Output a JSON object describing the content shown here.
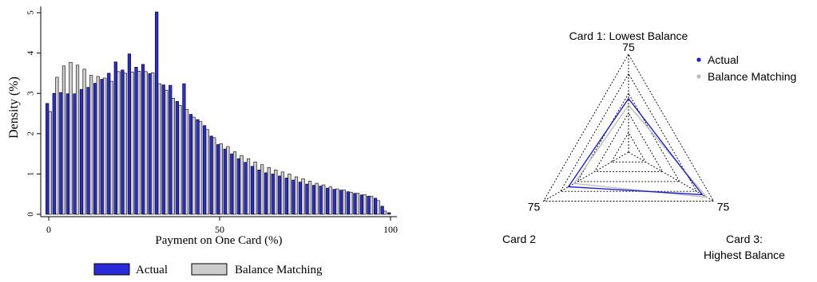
{
  "chart_data": [
    {
      "type": "bar",
      "xlabel": "Payment on One Card (%)",
      "ylabel": "Density (%)",
      "xlim": [
        0,
        100
      ],
      "ylim": [
        0,
        5
      ],
      "xticks": [
        0,
        50,
        100
      ],
      "yticks": [
        0,
        1,
        2,
        3,
        4,
        5
      ],
      "grid": false,
      "legend_position": "bottom",
      "x": [
        0,
        2,
        4,
        6,
        8,
        10,
        12,
        14,
        16,
        18,
        20,
        22,
        24,
        26,
        28,
        30,
        32,
        34,
        36,
        38,
        40,
        42,
        44,
        46,
        48,
        50,
        52,
        54,
        56,
        58,
        60,
        62,
        64,
        66,
        68,
        70,
        72,
        74,
        76,
        78,
        80,
        82,
        84,
        86,
        88,
        90,
        92,
        94,
        96,
        98,
        100
      ],
      "series": [
        {
          "name": "Actual",
          "color": "#2b2bd9",
          "values": [
            2.75,
            3.0,
            3.02,
            2.99,
            2.99,
            3.1,
            3.15,
            3.25,
            3.35,
            3.5,
            3.78,
            3.58,
            3.98,
            3.65,
            3.72,
            3.49,
            5.02,
            3.21,
            3.2,
            2.8,
            3.24,
            2.48,
            2.35,
            2.2,
            1.94,
            1.73,
            1.62,
            1.5,
            1.38,
            1.29,
            1.19,
            1.1,
            1.03,
            1.0,
            0.95,
            0.9,
            0.85,
            0.8,
            0.75,
            0.72,
            0.7,
            0.65,
            0.62,
            0.6,
            0.56,
            0.52,
            0.48,
            0.45,
            0.4,
            0.2,
            0.04
          ]
        },
        {
          "name": "Balance Matching",
          "color": "#cccccc",
          "values": [
            2.55,
            3.4,
            3.68,
            3.77,
            3.7,
            3.6,
            3.45,
            3.42,
            3.38,
            3.3,
            3.54,
            3.5,
            3.53,
            3.55,
            3.54,
            3.51,
            3.24,
            3.08,
            2.88,
            2.7,
            2.6,
            2.41,
            2.3,
            2.1,
            1.9,
            1.75,
            1.68,
            1.55,
            1.46,
            1.38,
            1.3,
            1.23,
            1.16,
            1.1,
            1.05,
            1.0,
            0.93,
            0.88,
            0.82,
            0.77,
            0.73,
            0.68,
            0.63,
            0.6,
            0.55,
            0.52,
            0.49,
            0.45,
            0.34,
            0.08,
            0.0
          ]
        }
      ]
    },
    {
      "type": "radar",
      "title": "Card 1: Lowest Balance",
      "axes": [
        "Card 1: Lowest Balance",
        "Card 2",
        "Card 3: Highest Balance"
      ],
      "axis_labels": [
        {
          "lines": [
            "Card 1: Lowest Balance"
          ]
        },
        {
          "lines": [
            "Card 2"
          ]
        },
        {
          "lines": [
            "Card 3:",
            "Highest Balance"
          ]
        }
      ],
      "rmax": 75,
      "ring_label": "75",
      "rings": [
        15,
        30,
        45,
        60,
        75
      ],
      "legend_position": "top-right",
      "series": [
        {
          "name": "Actual",
          "color": "#1f1fd6",
          "values": [
            41.0,
            53.0,
            65.0
          ]
        },
        {
          "name": "Balance Matching",
          "color": "#bdbdbd",
          "values": [
            36.0,
            48.0,
            69.0
          ]
        }
      ]
    }
  ]
}
